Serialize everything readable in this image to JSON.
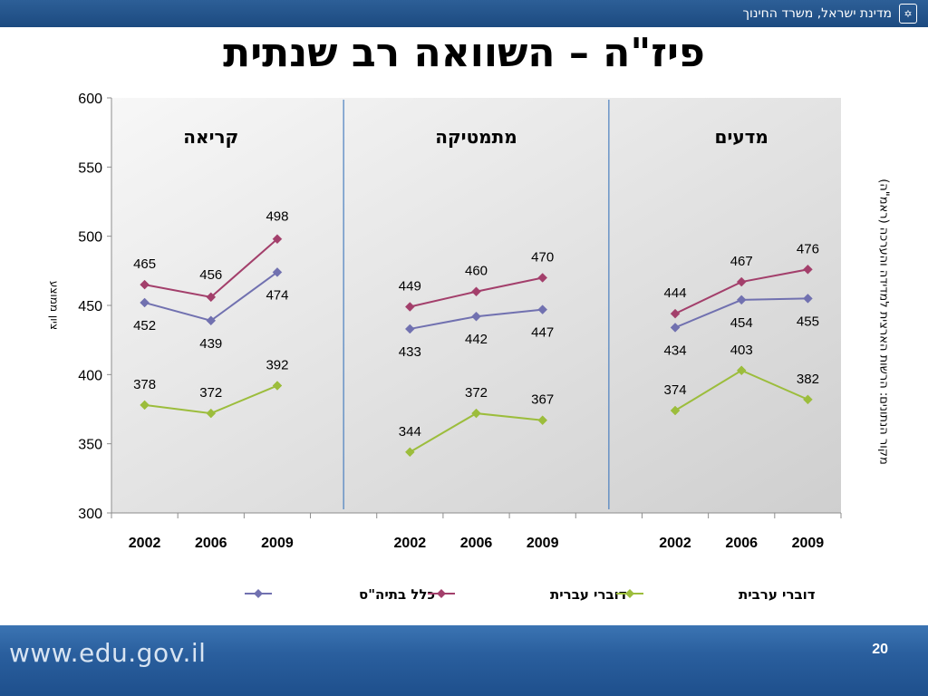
{
  "header": {
    "ministry": "מדינת ישראל, משרד החינוך",
    "emblem_icon": "menorah-emblem-icon"
  },
  "title": "פיז\"ה – השוואה רב שנתית",
  "source_note": "מקור הנתונים:  הרשות הארצית למדידה והערכה (ראמ\"ה)",
  "footer": {
    "url": "www.edu.gov.il",
    "page_number": "20"
  },
  "colors": {
    "overall": "#7171b0",
    "hebrew": "#a33f6b",
    "arabic": "#9cbd3c",
    "axis": "#8c8c8c",
    "divider": "#4a7fbf",
    "topbar": "#1f4f88"
  },
  "chart_data": {
    "type": "line",
    "ylabel": "ציון ממוצע",
    "ylim": [
      300,
      600
    ],
    "yticks": [
      300,
      350,
      400,
      450,
      500,
      550,
      600
    ],
    "grid": false,
    "legend_position": "bottom",
    "panels": [
      {
        "title": "קריאה",
        "x": [
          "2002",
          "2006",
          "2009"
        ],
        "series": [
          {
            "name": "כלל בתיה\"ס",
            "values": [
              452,
              439,
              474
            ]
          },
          {
            "name": "דוברי עברית",
            "values": [
              465,
              456,
              498
            ]
          },
          {
            "name": "דוברי ערבית",
            "values": [
              378,
              372,
              392
            ]
          }
        ]
      },
      {
        "title": "מתמטיקה",
        "x": [
          "2002",
          "2006",
          "2009"
        ],
        "series": [
          {
            "name": "כלל בתיה\"ס",
            "values": [
              433,
              442,
              447
            ]
          },
          {
            "name": "דוברי עברית",
            "values": [
              449,
              460,
              470
            ]
          },
          {
            "name": "דוברי ערבית",
            "values": [
              344,
              372,
              367
            ]
          }
        ]
      },
      {
        "title": "מדעים",
        "x": [
          "2002",
          "2006",
          "2009"
        ],
        "series": [
          {
            "name": "כלל בתיה\"ס",
            "values": [
              434,
              454,
              455
            ]
          },
          {
            "name": "דוברי עברית",
            "values": [
              444,
              467,
              476
            ]
          },
          {
            "name": "דוברי ערבית",
            "values": [
              374,
              403,
              382
            ]
          }
        ]
      }
    ]
  }
}
